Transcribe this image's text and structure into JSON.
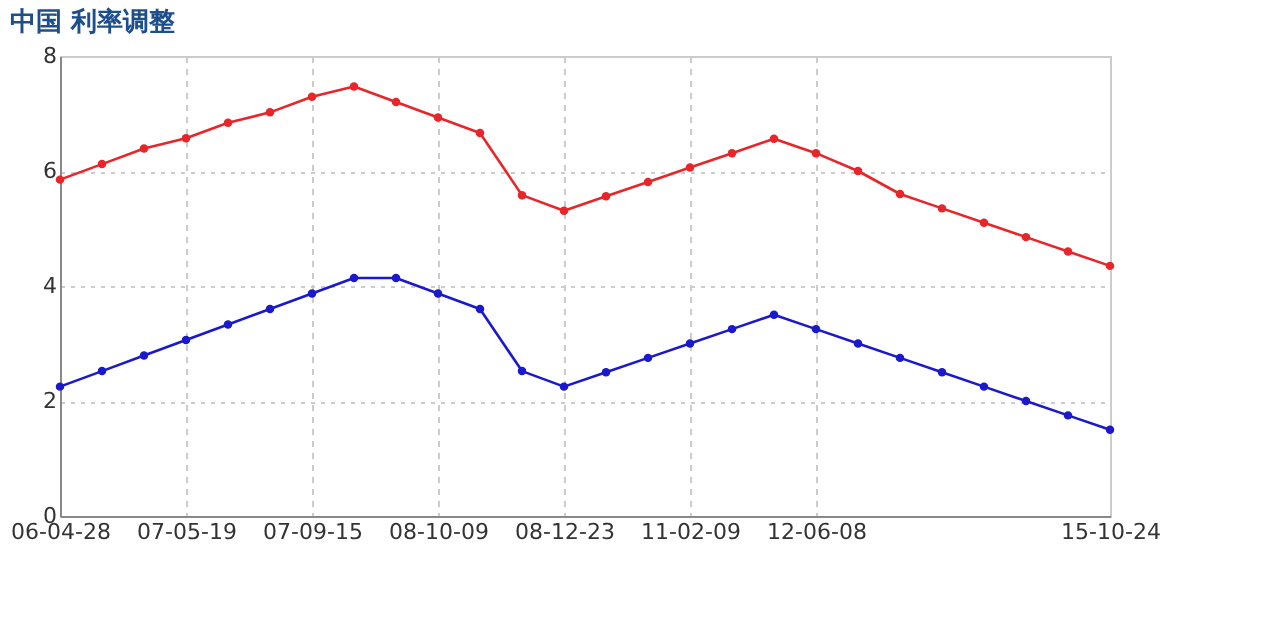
{
  "chart_data": {
    "type": "line",
    "title": "中国 利率调整",
    "categories": [
      "06-04-28",
      null,
      null,
      "07-05-19",
      null,
      null,
      "07-09-15",
      null,
      null,
      "08-10-09",
      null,
      null,
      "08-12-23",
      null,
      null,
      "11-02-09",
      null,
      null,
      "12-06-08",
      null,
      null,
      null,
      null,
      null,
      null,
      "15-10-24"
    ],
    "series": [
      {
        "color": "#e8262a",
        "values": [
          5.85,
          6.12,
          6.39,
          6.57,
          6.84,
          7.02,
          7.29,
          7.47,
          7.2,
          6.93,
          6.66,
          5.58,
          5.31,
          5.56,
          5.81,
          6.06,
          6.31,
          6.56,
          6.31,
          6.0,
          5.6,
          5.35,
          5.1,
          4.85,
          4.6,
          4.35
        ]
      },
      {
        "color": "#1a1acc",
        "values": [
          2.25,
          2.52,
          2.79,
          3.06,
          3.33,
          3.6,
          3.87,
          4.14,
          4.14,
          3.87,
          3.6,
          2.52,
          2.25,
          2.5,
          2.75,
          3.0,
          3.25,
          3.5,
          3.25,
          3.0,
          2.75,
          2.5,
          2.25,
          2.0,
          1.75,
          1.5
        ]
      }
    ],
    "ylim": [
      0,
      8
    ],
    "yticks": [
      0,
      2,
      4,
      6,
      8
    ],
    "grid": true,
    "marker": "circle",
    "line_style": "solid",
    "legend": false
  }
}
